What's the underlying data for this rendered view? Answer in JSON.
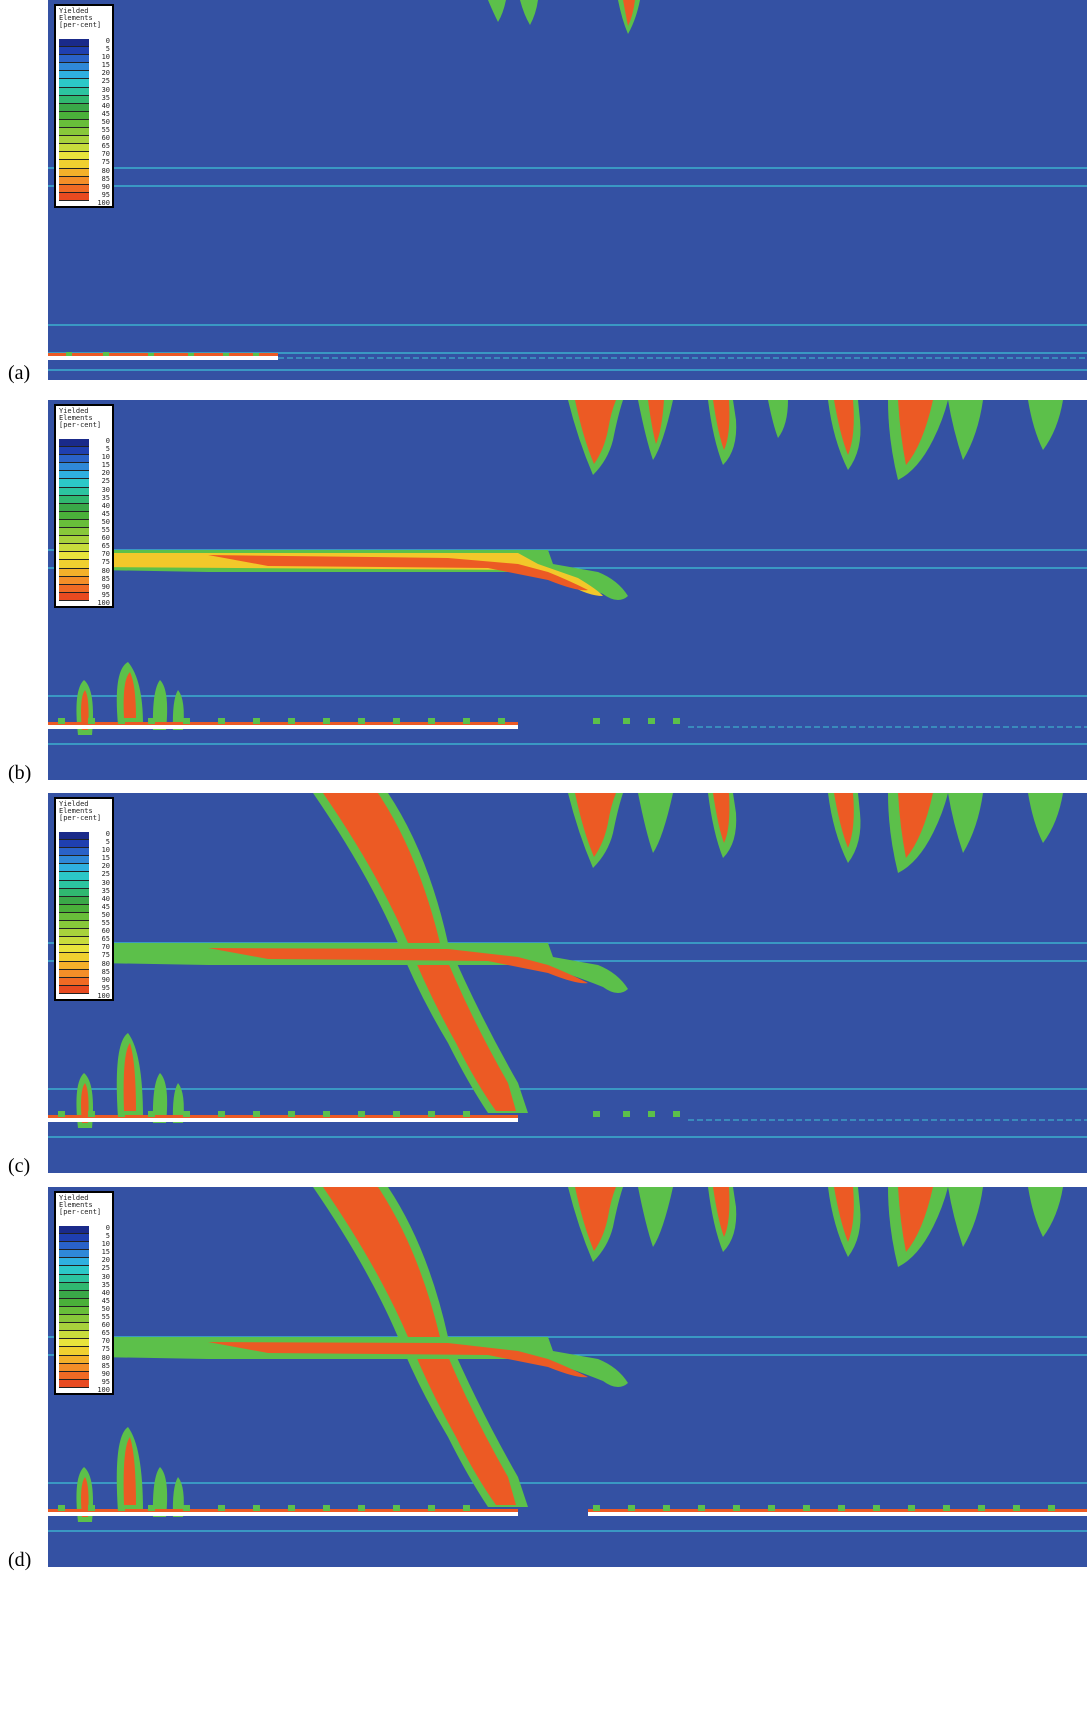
{
  "panels": [
    {
      "label": "(a)"
    },
    {
      "label": "(b)"
    },
    {
      "label": "(c)"
    },
    {
      "label": "(d)"
    }
  ],
  "legend": {
    "title_line1": "Yielded",
    "title_line2": "Elements",
    "title_line3": "[per-cent]",
    "values": [
      "0",
      "5",
      "10",
      "15",
      "20",
      "25",
      "30",
      "35",
      "40",
      "45",
      "50",
      "55",
      "60",
      "65",
      "70",
      "75",
      "80",
      "85",
      "90",
      "95",
      "100"
    ],
    "colors": [
      "#1a2a8a",
      "#1f3fb0",
      "#2a62c8",
      "#2f88d8",
      "#2fb0e0",
      "#2cc8c8",
      "#2cc4a0",
      "#30b870",
      "#3aa848",
      "#4ab03a",
      "#68be3a",
      "#88c83a",
      "#a8d23c",
      "#c8dc3c",
      "#e8e43c",
      "#f0d030",
      "#f4b02a",
      "#f48e28",
      "#f06a24",
      "#e84a20",
      "#e03a1c"
    ]
  },
  "colors": {
    "background": "#3451a3",
    "yielded": "#ec5a24",
    "transition": "#f2c82a",
    "edge": "#5cc04a",
    "layer_line": "#3fc2d6"
  }
}
